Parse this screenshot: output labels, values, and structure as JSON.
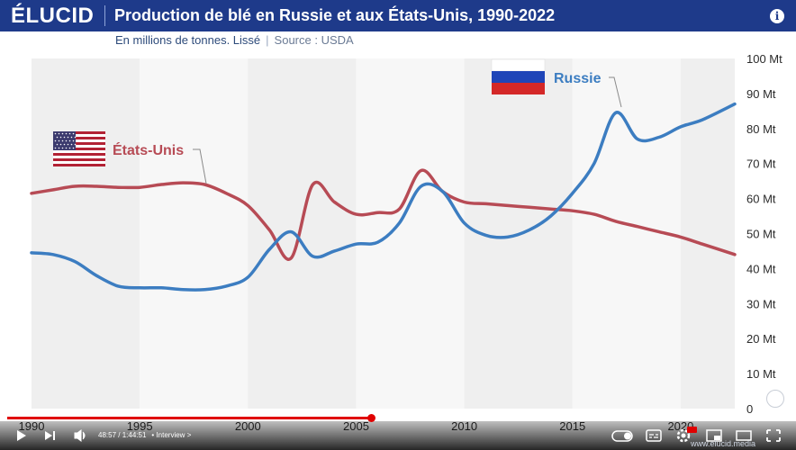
{
  "header": {
    "logo": "ÉLUCID",
    "title": "Production de blé en Russie et aux États-Unis, 1990-2022",
    "info_icon": "info-icon"
  },
  "subtitle": {
    "unit_text": "En millions de tonnes. Lissé",
    "separator": "|",
    "source_text": "Source : USDA"
  },
  "player": {
    "time_current": "48:57",
    "time_total": "1:44:51",
    "chapter": "• Interview",
    "chapter_chevron": ">",
    "progress_fraction": 0.466,
    "watermark": "www.elucid.media",
    "icons": [
      "play-icon",
      "next-icon",
      "volume-icon",
      "toggle-icon",
      "subtitles-icon",
      "settings-icon",
      "miniplayer-icon",
      "theater-icon",
      "fullscreen-icon"
    ],
    "settings_badge": "HD"
  },
  "colors": {
    "header_bg": "#1e3a8a",
    "russia": "#3c7dc1",
    "usa": "#b74b55",
    "band": "#efefef",
    "progress": "#e00000"
  },
  "chart_data": {
    "type": "line",
    "title": "Production de blé en Russie et aux États-Unis, 1990-2022",
    "subtitle": "En millions de tonnes. Lissé",
    "xlabel": "",
    "ylabel": "",
    "xlim": [
      1990,
      2022.5
    ],
    "ylim": [
      0,
      100
    ],
    "x_ticks": [
      "1990",
      "1995",
      "2000",
      "2005",
      "2010",
      "2015",
      "2020"
    ],
    "y_ticks": [
      "0",
      "10 Mt",
      "20 Mt",
      "30 Mt",
      "40 Mt",
      "50 Mt",
      "60 Mt",
      "70 Mt",
      "80 Mt",
      "90 Mt",
      "100 Mt"
    ],
    "y_tick_values": [
      0,
      10,
      20,
      30,
      40,
      50,
      60,
      70,
      80,
      90,
      100
    ],
    "grid": "alternating vertical bands every 5 years",
    "series": [
      {
        "name": "Russie",
        "color": "#3c7dc1",
        "flag": "russia-flag-icon",
        "x": [
          1990,
          1991,
          1992,
          1993,
          1994,
          1995,
          1996,
          1997,
          1998,
          1999,
          2000,
          2001,
          2002,
          2003,
          2004,
          2005,
          2006,
          2007,
          2008,
          2009,
          2010,
          2011,
          2012,
          2013,
          2014,
          2015,
          2016,
          2017,
          2018,
          2019,
          2020,
          2021,
          2022.5
        ],
        "values": [
          44.5,
          44,
          42,
          38,
          35,
          34.5,
          34.5,
          34,
          34,
          35,
          37.5,
          45.5,
          50.5,
          43.5,
          45,
          47,
          47.5,
          53,
          63.5,
          62,
          53,
          49.5,
          49,
          51,
          55,
          61.5,
          70,
          84.5,
          77,
          77.5,
          80.5,
          82.5,
          87
        ]
      },
      {
        "name": "États-Unis",
        "color": "#b74b55",
        "flag": "usa-flag-icon",
        "x": [
          1990,
          1991,
          1992,
          1993,
          1994,
          1995,
          1996,
          1997,
          1998,
          1999,
          2000,
          2001,
          2002,
          2003,
          2004,
          2005,
          2006,
          2007,
          2008,
          2009,
          2010,
          2011,
          2012,
          2013,
          2014,
          2015,
          2016,
          2017,
          2018,
          2019,
          2020,
          2021,
          2022.5
        ],
        "values": [
          61.5,
          62.5,
          63.5,
          63.5,
          63.2,
          63.2,
          64,
          64.5,
          64,
          61.5,
          58,
          51,
          43,
          64,
          59,
          55.5,
          56,
          57,
          68,
          62,
          59,
          58.5,
          58,
          57.5,
          57,
          56.5,
          55.5,
          53.5,
          52,
          50.5,
          49,
          47,
          44
        ]
      }
    ]
  }
}
